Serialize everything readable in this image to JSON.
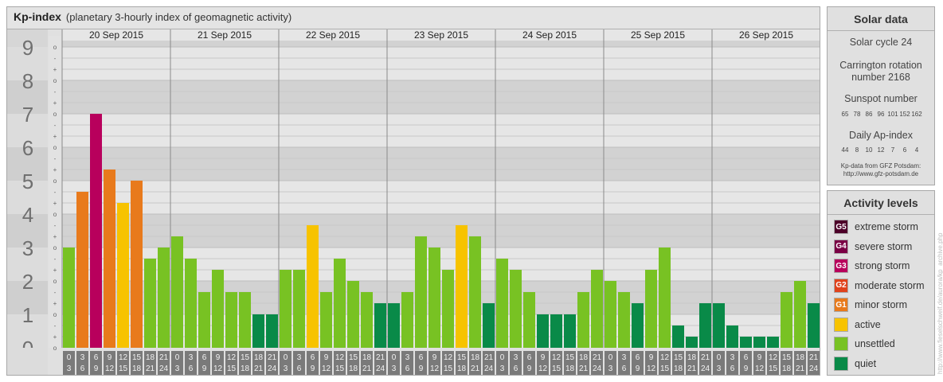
{
  "header": {
    "title": "Kp-index",
    "subtitle": "(planetary 3-hourly index of geomagnetic activity)"
  },
  "chart_data": {
    "type": "bar",
    "title": "Kp-index",
    "ylim": [
      0,
      9
    ],
    "y_tick_labels": [
      "0",
      "1",
      "2",
      "3",
      "4",
      "5",
      "6",
      "7",
      "8",
      "9"
    ],
    "minor_marks": [
      "+",
      "o",
      "-"
    ],
    "days": [
      "20 Sep 2015",
      "21 Sep 2015",
      "22 Sep 2015",
      "23 Sep 2015",
      "24 Sep 2015",
      "25 Sep 2015",
      "26 Sep 2015"
    ],
    "interval_labels": [
      [
        "0",
        "3"
      ],
      [
        "3",
        "6"
      ],
      [
        "6",
        "9"
      ],
      [
        "9",
        "12"
      ],
      [
        "12",
        "15"
      ],
      [
        "15",
        "18"
      ],
      [
        "18",
        "21"
      ],
      [
        "21",
        "24"
      ]
    ],
    "values": [
      3.0,
      4.667,
      7.0,
      5.333,
      4.333,
      5.0,
      2.667,
      3.0,
      3.333,
      2.667,
      1.667,
      2.333,
      1.667,
      1.667,
      1.0,
      1.0,
      2.333,
      2.333,
      3.667,
      1.667,
      2.667,
      2.0,
      1.667,
      1.333,
      1.333,
      1.667,
      3.333,
      3.0,
      2.333,
      3.667,
      3.333,
      1.333,
      2.667,
      2.333,
      1.667,
      1.0,
      1.0,
      1.0,
      1.667,
      2.333,
      2.0,
      1.667,
      1.333,
      2.333,
      3.0,
      0.667,
      0.333,
      1.333,
      1.333,
      0.667,
      0.333,
      0.333,
      0.333,
      1.667,
      2.0,
      1.333
    ],
    "levels": {
      "extreme_storm": "#4d0029",
      "severe_storm": "#7a0044",
      "strong_storm": "#b8005c",
      "moderate_storm": "#e0421b",
      "minor_storm": "#e87a1c",
      "active": "#f7c300",
      "unsettled": "#78c223",
      "quiet": "#098a48"
    }
  },
  "solar": {
    "heading": "Solar data",
    "cycle": "Solar cycle 24",
    "carrington_line1": "Carrington rotation",
    "carrington_line2": "number 2168",
    "sunspot_title": "Sunspot number",
    "sunspot_values": [
      "65",
      "78",
      "86",
      "96",
      "101",
      "152",
      "162"
    ],
    "ap_title": "Daily Ap-index",
    "ap_values": [
      "44",
      "8",
      "10",
      "12",
      "7",
      "6",
      "4"
    ],
    "source_line1": "Kp-data from GFZ Potsdam:",
    "source_line2": "http://www.gfz-potsdam.de"
  },
  "activity": {
    "heading": "Activity levels",
    "items": [
      {
        "code": "G5",
        "label": "extreme storm",
        "color": "#4d0029"
      },
      {
        "code": "G4",
        "label": "severe storm",
        "color": "#7a0044"
      },
      {
        "code": "G3",
        "label": "strong storm",
        "color": "#b8005c"
      },
      {
        "code": "G2",
        "label": "moderate storm",
        "color": "#e0421b"
      },
      {
        "code": "G1",
        "label": "minor storm",
        "color": "#e87a1c"
      },
      {
        "code": "",
        "label": "active",
        "color": "#f7c300"
      },
      {
        "code": "",
        "label": "unsettled",
        "color": "#78c223"
      },
      {
        "code": "",
        "label": "quiet",
        "color": "#098a48"
      }
    ]
  },
  "credit": "http://www.fieselschweif.de/aurora/kp_archive.php"
}
